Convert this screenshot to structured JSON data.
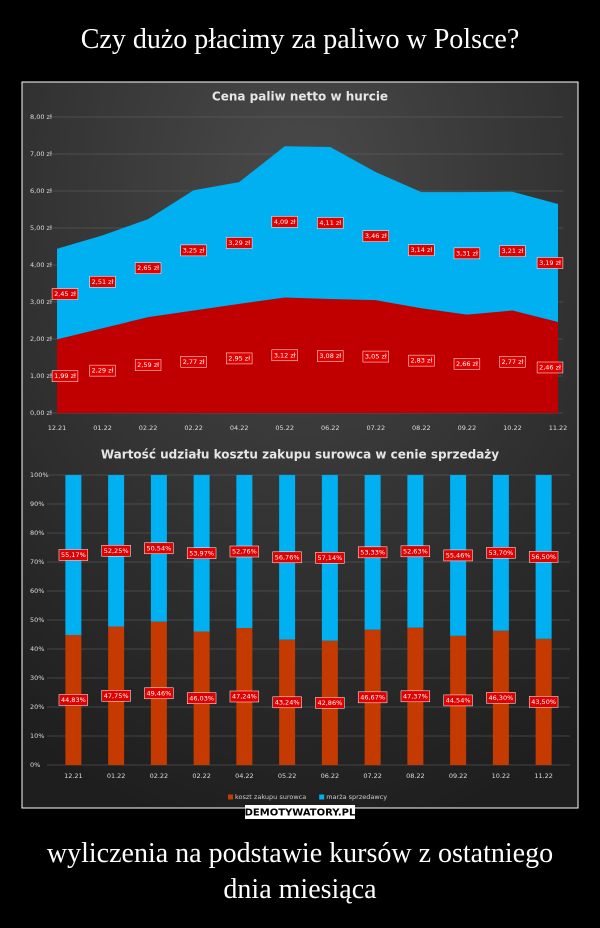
{
  "header": {
    "title": "Czy dużo płacimy za paliwo w Polsce?"
  },
  "caption": "wyliczenia na podstawie kursów z ostatniego dnia miesiąca",
  "watermark": "DEMOTYWATORY.PL",
  "chart_data": [
    {
      "type": "area",
      "stacked": true,
      "title": "Cena paliw  netto  w hurcie",
      "categories": [
        "12.21",
        "01.22",
        "02.22",
        "02.22",
        "04.22",
        "05.22",
        "06.22",
        "07.22",
        "08.22",
        "09.22",
        "10.22",
        "11.22"
      ],
      "series": [
        {
          "color": "#c00000",
          "values": [
            1.99,
            2.29,
            2.59,
            2.77,
            2.95,
            3.12,
            3.08,
            3.05,
            2.83,
            2.66,
            2.77,
            2.46
          ],
          "value_labels": [
            "1,99 zł",
            "2,29 zł",
            "2,59 zł",
            "2,77 zł",
            "2,95 zł",
            "3,12 zł",
            "3,08 zł",
            "3,05 zł",
            "2,83 zł",
            "2,66 zł",
            "2,77 zł",
            "2,46 zł"
          ]
        },
        {
          "color": "#00b0f0",
          "values": [
            2.45,
            2.51,
            2.65,
            3.25,
            3.29,
            4.09,
            4.11,
            3.46,
            3.14,
            3.31,
            3.21,
            3.19
          ],
          "value_labels": [
            "2,45 zł",
            "2,51 zł",
            "2,65 zł",
            "3,25 zł",
            "3,29 zł",
            "4,09 zł",
            "4,11 zł",
            "3,46 zł",
            "3,14 zł",
            "3,31 zł",
            "3,21 zł",
            "3,19 zł"
          ]
        }
      ],
      "ylim": [
        0,
        8
      ],
      "yticks": [
        {
          "value": 0,
          "label": "0,00 zł"
        },
        {
          "value": 1,
          "label": "1,00 zł"
        },
        {
          "value": 2,
          "label": "2,00 zł"
        },
        {
          "value": 3,
          "label": "3,00 zł"
        },
        {
          "value": 4,
          "label": "4,00 zł"
        },
        {
          "value": 5,
          "label": "5,00 zł"
        },
        {
          "value": 6,
          "label": "6,00 zł"
        },
        {
          "value": 7,
          "label": "7,00 zł"
        },
        {
          "value": 8,
          "label": "8,00 zł"
        }
      ],
      "grid": true
    },
    {
      "type": "bar",
      "stacked": true,
      "title": "Wartość  udziału  kosztu  zakupu  surowca  w  cenie  sprzedaży",
      "categories": [
        "12.21",
        "01.22",
        "02.22",
        "02.22",
        "04.22",
        "05.22",
        "06.22",
        "07.22",
        "08.22",
        "09.22",
        "10.22",
        "11.22"
      ],
      "series": [
        {
          "name": "koszt zakupu surowca",
          "color": "#c43a00",
          "values": [
            44.83,
            47.75,
            49.46,
            46.03,
            47.24,
            43.24,
            42.86,
            46.67,
            47.37,
            44.54,
            46.3,
            43.5
          ],
          "value_labels": [
            "44,83%",
            "47,75%",
            "49,46%",
            "46,03%",
            "47,24%",
            "43,24%",
            "42,86%",
            "46,67%",
            "47,37%",
            "44,54%",
            "46,30%",
            "43,50%"
          ]
        },
        {
          "name": "marża sprzedawcy",
          "color": "#00b0f0",
          "values": [
            55.17,
            52.25,
            50.54,
            53.97,
            52.76,
            56.76,
            57.14,
            53.33,
            52.63,
            55.46,
            53.7,
            56.5
          ],
          "value_labels": [
            "55,17%",
            "52,25%",
            "50,54%",
            "53,97%",
            "52,76%",
            "56,76%",
            "57,14%",
            "53,33%",
            "52,63%",
            "55,46%",
            "53,70%",
            "56,50%"
          ]
        }
      ],
      "ylim": [
        0,
        100
      ],
      "yticks": [
        {
          "value": 0,
          "label": "0%"
        },
        {
          "value": 10,
          "label": "10%"
        },
        {
          "value": 20,
          "label": "20%"
        },
        {
          "value": 30,
          "label": "30%"
        },
        {
          "value": 40,
          "label": "40%"
        },
        {
          "value": 50,
          "label": "50%"
        },
        {
          "value": 60,
          "label": "60%"
        },
        {
          "value": 70,
          "label": "70%"
        },
        {
          "value": 80,
          "label": "80%"
        },
        {
          "value": 90,
          "label": "90%"
        },
        {
          "value": 100,
          "label": "100%"
        }
      ],
      "grid": true
    }
  ]
}
